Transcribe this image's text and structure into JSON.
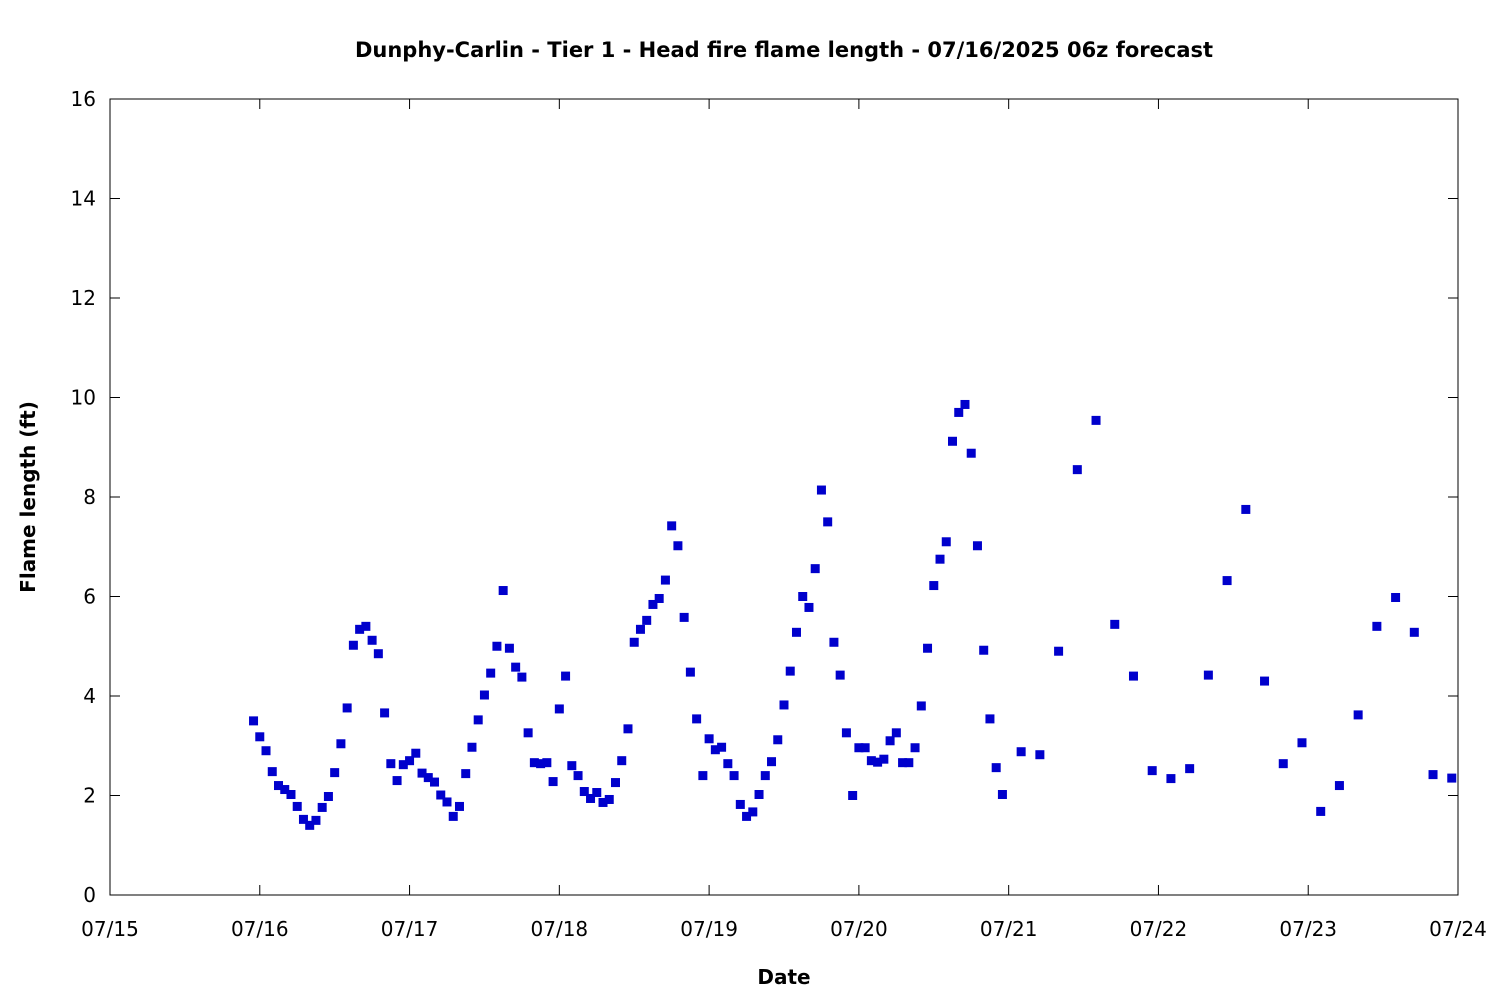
{
  "chart_data": {
    "type": "scatter",
    "title": "Dunphy-Carlin - Tier 1 - Head fire flame length - 07/16/2025 06z forecast",
    "xlabel": "Date",
    "ylabel": "Flame length (ft)",
    "x_ticks": [
      "07/15",
      "07/16",
      "07/17",
      "07/18",
      "07/19",
      "07/20",
      "07/21",
      "07/22",
      "07/23",
      "07/24"
    ],
    "y_ticks": [
      "0",
      "2",
      "4",
      "6",
      "8",
      "10",
      "12",
      "14",
      "16"
    ],
    "xlim": [
      "07/15 00:00",
      "07/24 00:00"
    ],
    "ylim": [
      0,
      16
    ],
    "grid": false,
    "marker_color": "#0000CC",
    "series": [
      {
        "x": [
          "07/15 23:00",
          "07/16 00:00",
          "07/16 01:00",
          "07/16 02:00",
          "07/16 03:00",
          "07/16 04:00",
          "07/16 05:00",
          "07/16 06:00",
          "07/16 07:00",
          "07/16 08:00",
          "07/16 09:00",
          "07/16 10:00",
          "07/16 11:00",
          "07/16 12:00",
          "07/16 13:00",
          "07/16 14:00",
          "07/16 15:00",
          "07/16 16:00",
          "07/16 17:00",
          "07/16 18:00",
          "07/16 19:00",
          "07/16 20:00",
          "07/16 21:00",
          "07/16 22:00",
          "07/16 23:00",
          "07/17 00:00",
          "07/17 01:00",
          "07/17 02:00",
          "07/17 03:00",
          "07/17 04:00",
          "07/17 05:00",
          "07/17 06:00",
          "07/17 07:00",
          "07/17 08:00",
          "07/17 09:00",
          "07/17 10:00",
          "07/17 11:00",
          "07/17 12:00",
          "07/17 13:00",
          "07/17 14:00",
          "07/17 15:00",
          "07/17 16:00",
          "07/17 17:00",
          "07/17 18:00",
          "07/17 19:00",
          "07/17 20:00",
          "07/17 21:00",
          "07/17 22:00",
          "07/17 23:00",
          "07/18 00:00",
          "07/18 01:00",
          "07/18 02:00",
          "07/18 03:00",
          "07/18 04:00",
          "07/18 05:00",
          "07/18 06:00",
          "07/18 07:00",
          "07/18 08:00",
          "07/18 09:00",
          "07/18 10:00",
          "07/18 11:00",
          "07/18 12:00",
          "07/18 13:00",
          "07/18 14:00",
          "07/18 15:00",
          "07/18 16:00",
          "07/18 17:00",
          "07/18 18:00",
          "07/18 19:00",
          "07/18 20:00",
          "07/18 21:00",
          "07/18 22:00",
          "07/18 23:00",
          "07/19 00:00",
          "07/19 01:00",
          "07/19 02:00",
          "07/19 03:00",
          "07/19 04:00",
          "07/19 05:00",
          "07/19 06:00",
          "07/19 07:00",
          "07/19 08:00",
          "07/19 09:00",
          "07/19 10:00",
          "07/19 11:00",
          "07/19 12:00",
          "07/19 13:00",
          "07/19 14:00",
          "07/19 15:00",
          "07/19 16:00",
          "07/19 17:00",
          "07/19 18:00",
          "07/19 19:00",
          "07/19 20:00",
          "07/19 21:00",
          "07/19 22:00",
          "07/19 23:00",
          "07/20 00:00",
          "07/20 01:00",
          "07/20 02:00",
          "07/20 03:00",
          "07/20 04:00",
          "07/20 05:00",
          "07/20 06:00",
          "07/20 07:00",
          "07/20 08:00",
          "07/20 09:00",
          "07/20 10:00",
          "07/20 11:00",
          "07/20 12:00",
          "07/20 13:00",
          "07/20 14:00",
          "07/20 15:00",
          "07/20 16:00",
          "07/20 17:00",
          "07/20 18:00",
          "07/20 19:00",
          "07/20 20:00",
          "07/20 21:00",
          "07/20 22:00",
          "07/20 23:00",
          "07/21 02:00",
          "07/21 05:00",
          "07/21 08:00",
          "07/21 11:00",
          "07/21 14:00",
          "07/21 17:00",
          "07/21 20:00",
          "07/21 23:00",
          "07/22 02:00",
          "07/22 05:00",
          "07/22 08:00",
          "07/22 11:00",
          "07/22 14:00",
          "07/22 17:00",
          "07/22 20:00",
          "07/22 23:00",
          "07/23 02:00",
          "07/23 05:00",
          "07/23 08:00",
          "07/23 11:00",
          "07/23 14:00",
          "07/23 17:00",
          "07/23 20:00",
          "07/23 23:00"
        ],
        "y": [
          3.5,
          3.18,
          2.9,
          2.48,
          2.2,
          2.12,
          2.02,
          1.78,
          1.52,
          1.4,
          1.5,
          1.76,
          1.98,
          2.46,
          3.04,
          3.76,
          5.02,
          5.34,
          5.4,
          5.12,
          4.85,
          3.66,
          2.64,
          2.3,
          2.62,
          2.7,
          2.85,
          2.45,
          2.36,
          2.27,
          2.01,
          1.87,
          1.58,
          1.78,
          2.44,
          2.97,
          3.52,
          4.02,
          4.46,
          5.0,
          6.12,
          4.96,
          4.58,
          4.38,
          3.26,
          2.66,
          2.64,
          2.66,
          2.28,
          3.74,
          4.4,
          2.6,
          2.4,
          2.08,
          1.94,
          2.06,
          1.86,
          1.92,
          2.26,
          2.7,
          3.34,
          5.08,
          5.34,
          5.52,
          5.84,
          5.96,
          6.33,
          7.42,
          7.02,
          5.58,
          4.48,
          3.54,
          2.4,
          3.14,
          2.92,
          2.97,
          2.64,
          2.4,
          1.82,
          1.58,
          1.67,
          2.02,
          2.4,
          2.68,
          3.12,
          3.82,
          4.5,
          5.28,
          6.0,
          5.78,
          6.56,
          8.14,
          7.5,
          5.08,
          4.42,
          3.26,
          2.0,
          2.96,
          2.96,
          2.7,
          2.67,
          2.73,
          3.1,
          3.26,
          2.66,
          2.66,
          2.96,
          3.8,
          4.96,
          6.22,
          6.75,
          7.1,
          9.12,
          9.7,
          9.86,
          8.88,
          7.02,
          4.92,
          3.54,
          2.56,
          2.02,
          2.88,
          2.82,
          4.9,
          8.55,
          9.54,
          5.44,
          4.4,
          2.5,
          2.34,
          2.54,
          4.42,
          6.32,
          7.75,
          4.3,
          2.64,
          3.06,
          1.68,
          2.2,
          3.62,
          5.4,
          5.98,
          5.28,
          2.42,
          2.35
        ]
      }
    ]
  }
}
